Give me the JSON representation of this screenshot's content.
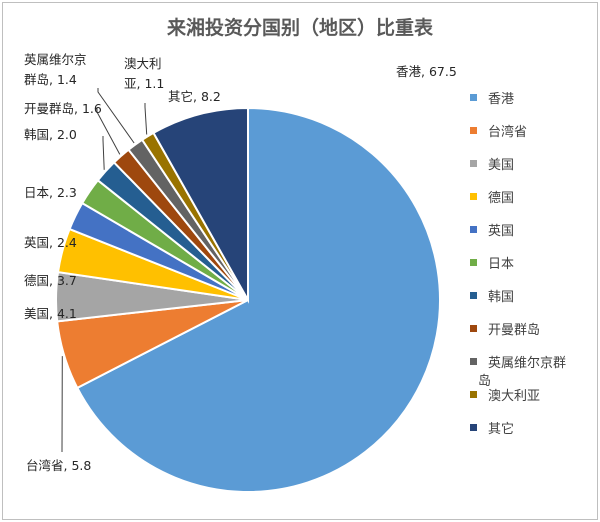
{
  "chart_data": {
    "type": "pie",
    "title": "来湘投资分国别（地区）比重表",
    "legend_position": "right",
    "slices": [
      {
        "label": "香港",
        "value": 67.5,
        "color": "#5B9BD5"
      },
      {
        "label": "台湾省",
        "value": 5.8,
        "color": "#ED7D31"
      },
      {
        "label": "美国",
        "value": 4.1,
        "color": "#A5A5A5"
      },
      {
        "label": "德国",
        "value": 3.7,
        "color": "#FFC000"
      },
      {
        "label": "英国",
        "value": 2.4,
        "color": "#4472C4"
      },
      {
        "label": "日本",
        "value": 2.3,
        "color": "#70AD47"
      },
      {
        "label": "韩国",
        "value": 2.0,
        "color": "#255E91"
      },
      {
        "label": "开曼群岛",
        "value": 1.6,
        "color": "#9E480E"
      },
      {
        "label": "英属维尔京群岛",
        "value": 1.4,
        "color": "#636363"
      },
      {
        "label": "澳大利亚",
        "value": 1.1,
        "color": "#997300"
      },
      {
        "label": "其它",
        "value": 8.2,
        "color": "#264478"
      }
    ]
  }
}
